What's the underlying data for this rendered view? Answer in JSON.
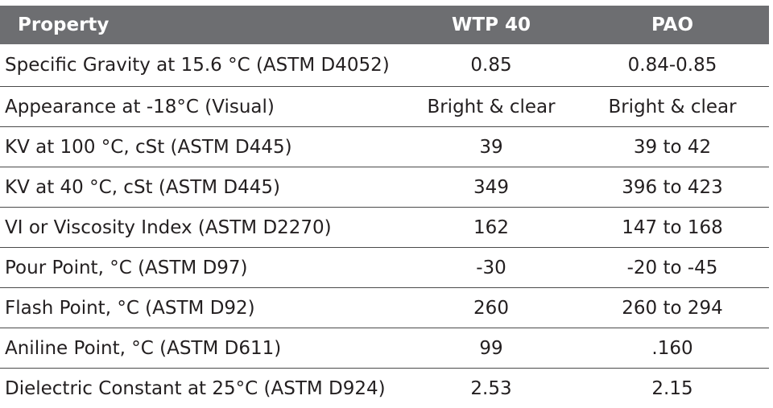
{
  "table": {
    "headers": [
      "Property",
      "WTP 40",
      "PAO"
    ],
    "rows": [
      [
        "Specific Gravity at 15.6 °C (ASTM D4052)",
        "0.85",
        "0.84-0.85"
      ],
      [
        "Appearance at -18°C (Visual)",
        "Bright & clear",
        "Bright & clear"
      ],
      [
        "KV at 100 °C, cSt (ASTM D445)",
        "39",
        "39 to 42"
      ],
      [
        "KV at 40 °C, cSt (ASTM D445)",
        "349",
        "396 to 423"
      ],
      [
        "VI or Viscosity Index (ASTM D2270)",
        "162",
        "147 to 168"
      ],
      [
        "Pour Point, °C (ASTM D97)",
        "-30",
        "-20 to -45"
      ],
      [
        "Flash Point, °C (ASTM D92)",
        "260",
        "260 to 294"
      ],
      [
        "Aniline Point, °C (ASTM D611)",
        "99",
        ".160"
      ],
      [
        "Dielectric Constant at 25°C (ASTM D924)",
        "2.53",
        "2.15"
      ]
    ]
  },
  "colors": {
    "header_bg": "#6d6e71",
    "header_text": "#ffffff",
    "body_text": "#231f20",
    "row_divider": "#4a4a4a"
  }
}
